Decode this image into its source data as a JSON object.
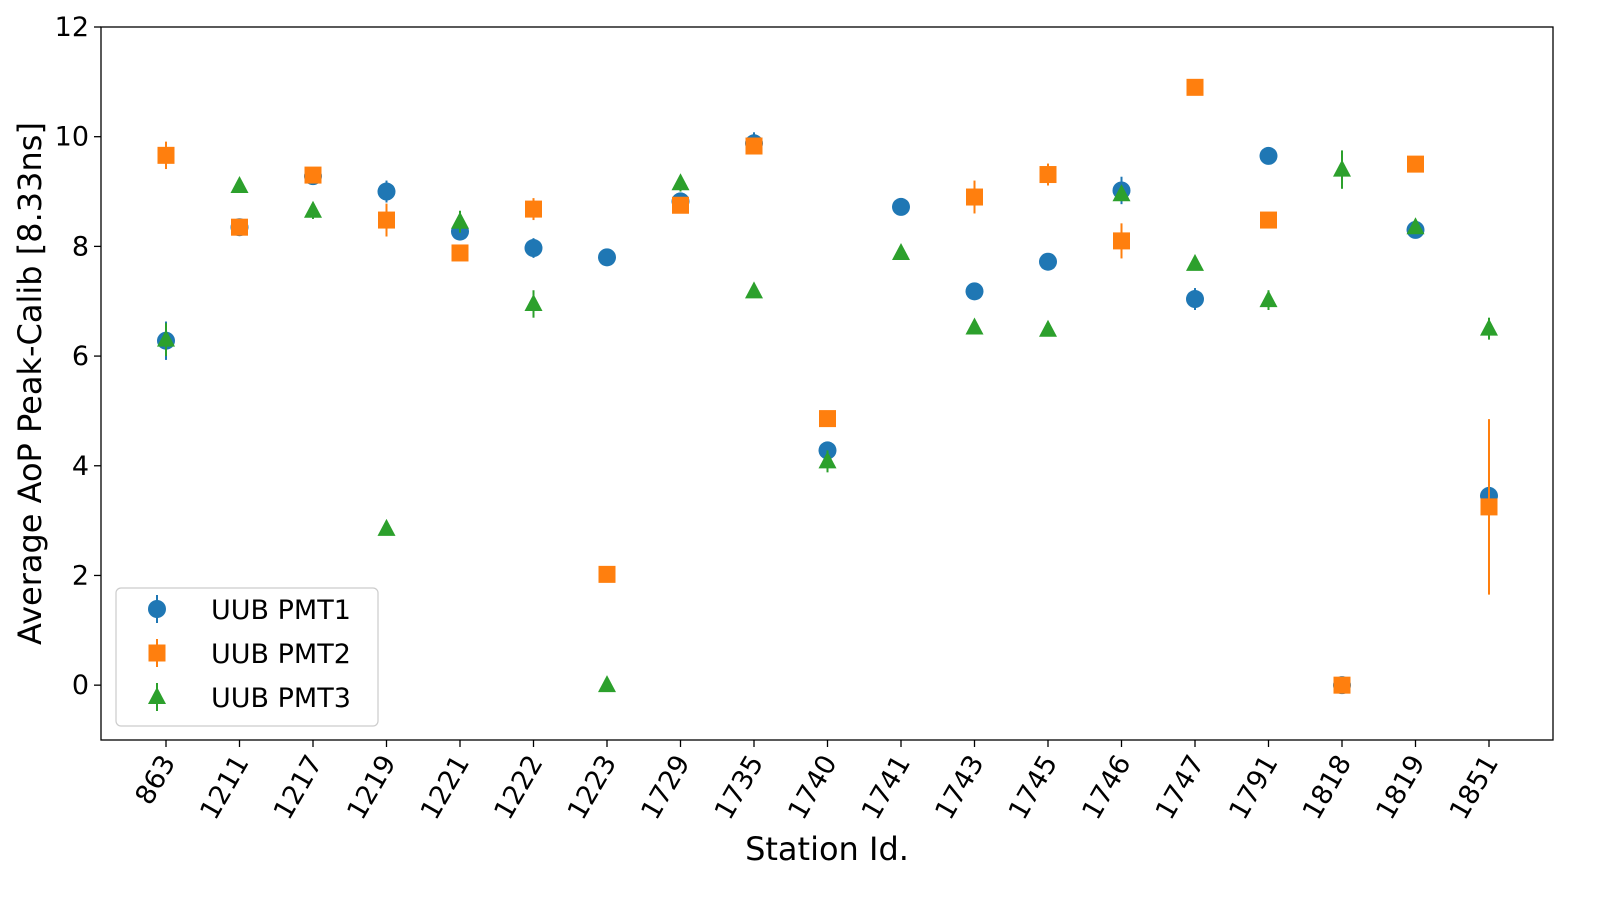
{
  "chart_data": {
    "type": "scatter",
    "xlabel": "Station Id.",
    "ylabel": "Average AoP Peak-Calib [8.33ns]",
    "categories": [
      "863",
      "1211",
      "1217",
      "1219",
      "1221",
      "1222",
      "1223",
      "1729",
      "1735",
      "1740",
      "1741",
      "1743",
      "1745",
      "1746",
      "1747",
      "1791",
      "1818",
      "1819",
      "1851"
    ],
    "ylim": [
      -1,
      12
    ],
    "yticks": [
      0,
      2,
      4,
      6,
      8,
      10,
      12
    ],
    "legend_position": "lower-left",
    "grid": false,
    "series": [
      {
        "name": "UUB PMT1",
        "marker": "circle",
        "color": "#1f77b4",
        "values": [
          6.28,
          8.35,
          9.28,
          9.0,
          8.27,
          7.97,
          7.8,
          8.82,
          9.88,
          4.28,
          8.72,
          7.18,
          7.72,
          9.02,
          7.04,
          9.65,
          0.0,
          8.3,
          3.45
        ],
        "errors": [
          0.35,
          0.12,
          0.08,
          0.2,
          0.15,
          0.18,
          0.05,
          0.1,
          0.2,
          0.1,
          0.15,
          0.15,
          0.12,
          0.25,
          0.2,
          0.06,
          0.05,
          0.1,
          0.08
        ]
      },
      {
        "name": "UUB PMT2",
        "marker": "square",
        "color": "#ff7f0e",
        "values": [
          9.66,
          8.35,
          9.3,
          8.48,
          7.88,
          8.68,
          2.02,
          8.75,
          9.83,
          4.86,
          null,
          8.9,
          9.31,
          8.1,
          10.9,
          8.48,
          0.0,
          9.5,
          3.25
        ],
        "errors": [
          0.25,
          0.15,
          0.1,
          0.3,
          0.1,
          0.2,
          0.05,
          0.15,
          0.15,
          0.05,
          null,
          0.3,
          0.2,
          0.32,
          0.12,
          0.12,
          0.05,
          0.05,
          1.6
        ]
      },
      {
        "name": "UUB PMT3",
        "marker": "triangle",
        "color": "#2ca02c",
        "values": [
          6.3,
          9.1,
          8.65,
          2.85,
          8.45,
          6.95,
          0.0,
          9.15,
          7.18,
          4.08,
          7.88,
          6.52,
          6.48,
          8.95,
          7.68,
          7.02,
          9.4,
          8.35,
          6.5
        ],
        "errors": [
          0.3,
          0.05,
          0.15,
          0.03,
          0.2,
          0.25,
          0.03,
          0.15,
          0.05,
          0.2,
          0.05,
          0.05,
          0.05,
          0.1,
          0.1,
          0.18,
          0.35,
          0.1,
          0.2
        ]
      }
    ]
  }
}
